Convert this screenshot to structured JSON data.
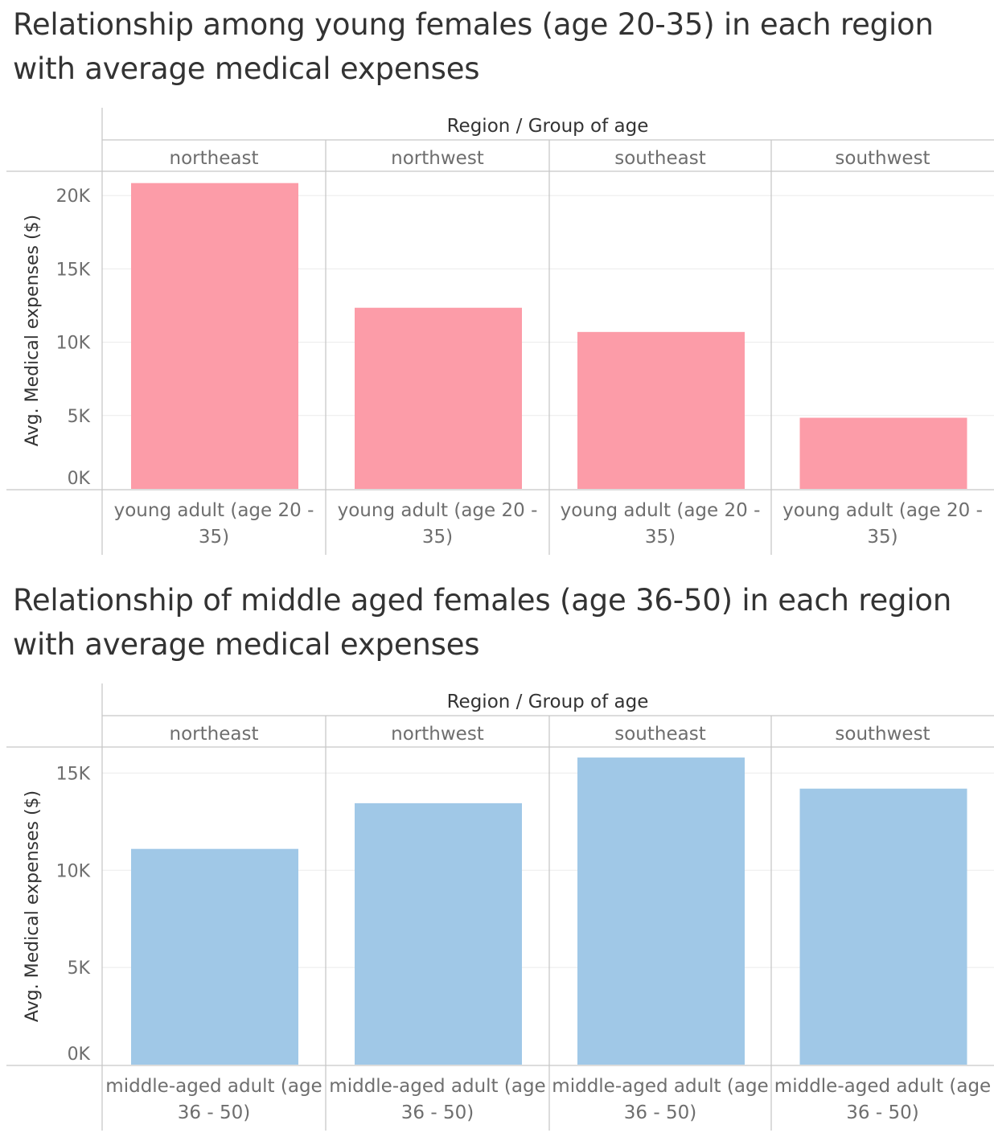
{
  "titles": [
    "Relationship among young females (age 20-35) in each region with average medical expenses",
    "Relationship of middle aged females (age 36-50) in each region with average medical expenses"
  ],
  "colors": {
    "young_bar": "#fc9ca8",
    "middle_bar": "#a0c8e7",
    "gridline": "#ebebeb",
    "divider": "#c8c8c8",
    "text": "#6e6e6e",
    "header_text": "#333333"
  },
  "chart_data": [
    {
      "type": "bar",
      "title": "Relationship among young females (age 20-35) in each region with average medical expenses",
      "header_label": "Region  /  Group of age",
      "ylabel": "Avg. Medical expenses ($)",
      "regions": [
        "northeast",
        "northwest",
        "southeast",
        "southwest"
      ],
      "categories": [
        "young adult (age 20 - 35)",
        "young adult (age 20 - 35)",
        "young adult (age 20 - 35)",
        "young adult (age 20 - 35)"
      ],
      "values": [
        20850,
        12350,
        10700,
        4850
      ],
      "yticks": [
        "0K",
        "5K",
        "10K",
        "15K",
        "20K"
      ],
      "ytick_values": [
        0,
        5000,
        10000,
        15000,
        20000
      ],
      "ylim": [
        0,
        21600
      ],
      "grid": true,
      "color": "#fc9ca8"
    },
    {
      "type": "bar",
      "title": "Relationship of middle aged females (age 36-50) in each region with average medical expenses",
      "header_label": "Region  /  Group of age",
      "ylabel": "Avg. Medical expenses ($)",
      "regions": [
        "northeast",
        "northwest",
        "southeast",
        "southwest"
      ],
      "categories": [
        "middle-aged adult (age 36 - 50)",
        "middle-aged adult (age 36 - 50)",
        "middle-aged adult (age 36 - 50)",
        "middle-aged adult (age 36 - 50)"
      ],
      "values": [
        11100,
        13450,
        15800,
        14200
      ],
      "yticks": [
        "0K",
        "5K",
        "10K",
        "15K"
      ],
      "ytick_values": [
        0,
        5000,
        10000,
        15000
      ],
      "ylim": [
        0,
        16300
      ],
      "grid": true,
      "color": "#a0c8e7"
    }
  ]
}
